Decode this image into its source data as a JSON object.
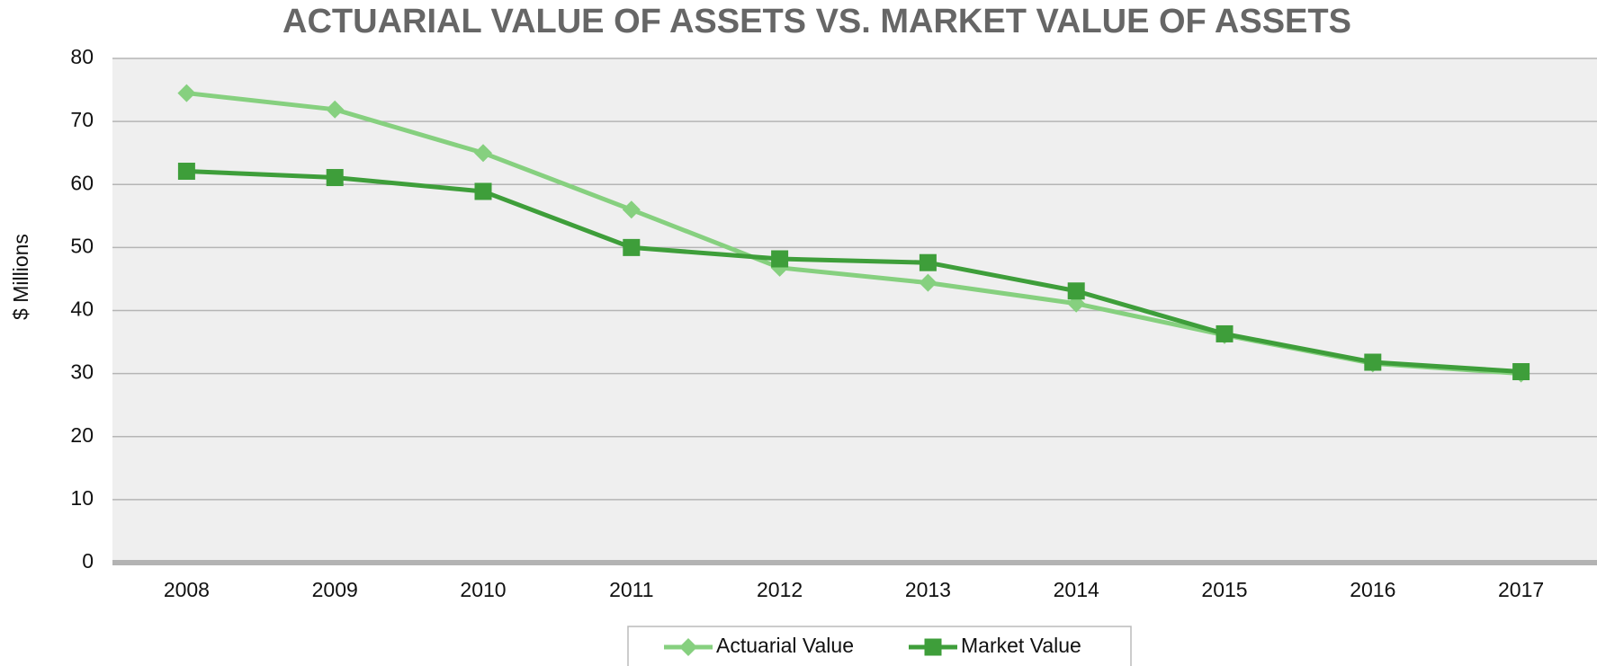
{
  "chart_data": {
    "type": "line",
    "title": "ACTUARIAL VALUE OF ASSETS VS. MARKET VALUE OF ASSETS",
    "y_label": "$ Millions",
    "categories": [
      "2008",
      "2009",
      "2010",
      "2011",
      "2012",
      "2013",
      "2014",
      "2015",
      "2016",
      "2017"
    ],
    "series": [
      {
        "name": "Actuarial Value",
        "color": "#86d07f",
        "marker": "diamond",
        "values": [
          74.5,
          71.9,
          65,
          56,
          46.8,
          44.4,
          41.1,
          36.1,
          31.6,
          30.0
        ]
      },
      {
        "name": "Market Value",
        "color": "#3e9e3a",
        "marker": "square",
        "values": [
          62.1,
          61.1,
          58.9,
          50,
          48.2,
          47.6,
          43.1,
          36.3,
          31.8,
          30.3
        ]
      }
    ],
    "ylim": [
      0,
      80
    ],
    "yticks": [
      0,
      10,
      20,
      30,
      40,
      50,
      60,
      70,
      80
    ],
    "grid": true,
    "legend": "bottom"
  }
}
